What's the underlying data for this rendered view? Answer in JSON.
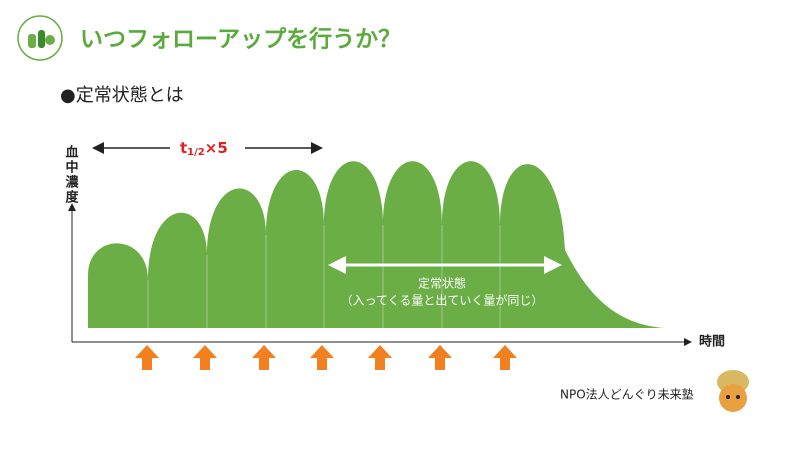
{
  "header": {
    "title": "いつフォローアップを行うか？"
  },
  "bullet": "●定常状態とは",
  "diagram": {
    "y_axis_label": [
      "血",
      "中",
      "濃",
      "度"
    ],
    "x_axis_label": "時間",
    "half_life": {
      "base": "t",
      "subscript": "1/2",
      "suffix": "×5"
    },
    "steady_state": {
      "label": "定常状態",
      "note": "（入ってくる量と出ていく量が同じ）"
    }
  },
  "footer": "NPO法人どんぐり未来塾"
}
